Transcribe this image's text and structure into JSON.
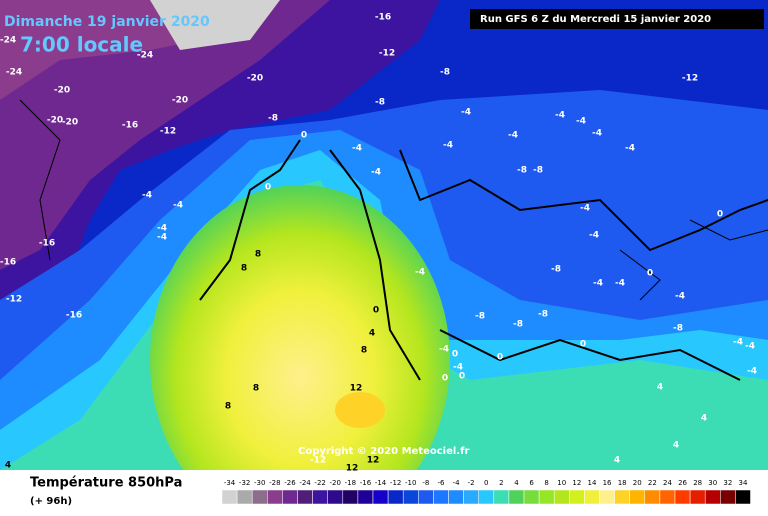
{
  "date": "Dimanche 19 janvier 2020",
  "time": "7:00 locale",
  "run": "Run GFS 6 Z du Mercredi 15 janvier 2020",
  "copyright": "Copyright © 2020 Meteociel.fr",
  "variable": "Température 850hPa",
  "lead": "(+ 96h)",
  "contour_labels": [
    -24,
    -24,
    -24,
    -20,
    -20,
    -20,
    -20,
    -20,
    -16,
    -12,
    -12,
    -16,
    -12,
    -8,
    -8,
    -8,
    0,
    -4,
    -4,
    -4,
    -4,
    -4,
    -4,
    -16,
    -16,
    -12,
    -16,
    0,
    8,
    8,
    -4,
    -4,
    -4,
    -4,
    -4,
    -8,
    -8,
    -4,
    -8,
    -4,
    -4,
    -8,
    -8,
    -8,
    0,
    -4,
    -8,
    0,
    0,
    -4,
    0,
    -4,
    0,
    0,
    0,
    0,
    4,
    8,
    12,
    8,
    8,
    -4,
    -4,
    -4,
    4,
    4,
    4,
    -12,
    12,
    12,
    4,
    4,
    -4,
    -4,
    -4,
    -4
  ],
  "scale": {
    "values": [
      -34,
      -32,
      -30,
      -28,
      -26,
      -24,
      -22,
      -20,
      -18,
      -16,
      -14,
      -12,
      -10,
      -8,
      -6,
      -4,
      -2,
      0,
      2,
      4,
      6,
      8,
      10,
      12,
      14,
      16,
      18,
      20,
      22,
      24,
      26,
      28,
      30,
      32,
      34
    ],
    "colors": [
      "#d2d2d2",
      "#aaaaaa",
      "#8c6e8c",
      "#8c3c8c",
      "#6e2890",
      "#501e78",
      "#3c14a0",
      "#2d0a8c",
      "#230064",
      "#1e0096",
      "#1400c8",
      "#0a28c8",
      "#0a46dc",
      "#1e5af0",
      "#1e78ff",
      "#1e8cff",
      "#28aaff",
      "#28c8ff",
      "#3cdcb4",
      "#50d25a",
      "#78dc3c",
      "#96e628",
      "#b4e61e",
      "#d2f01e",
      "#f0f03c",
      "#fff08c",
      "#ffd228",
      "#ffb400",
      "#ff8c00",
      "#ff6400",
      "#ff3c00",
      "#e61e00",
      "#b40000",
      "#780000",
      "#000000"
    ]
  }
}
